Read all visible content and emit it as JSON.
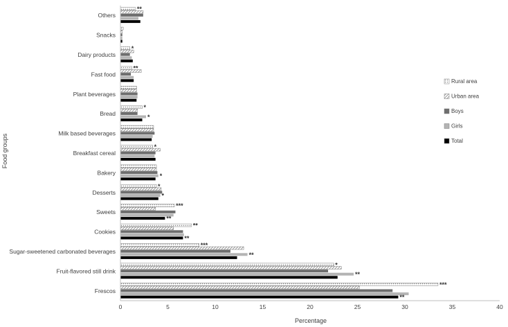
{
  "chart_data": {
    "type": "bar",
    "orientation": "horizontal",
    "xlabel": "Percentage",
    "ylabel": "Food groups",
    "xlim": [
      0,
      40
    ],
    "xticks": [
      0,
      5,
      10,
      15,
      20,
      25,
      30,
      35,
      40
    ],
    "grid": false,
    "legend_position": "right",
    "categories": [
      "Others",
      "Snacks",
      "Dairy products",
      "Fast food",
      "Plant beverages",
      "Bread",
      "Milk based beverages",
      "Breakfast cereal",
      "Bakery",
      "Desserts",
      "Sweets",
      "Cookies",
      "Sugar-sweetened carbonated beverages",
      "Fruit-flavored still drink",
      "Frescos"
    ],
    "series": [
      {
        "name": "Rural area",
        "color": "#e4e4e4",
        "pattern": "dots",
        "values": [
          1.6,
          0.3,
          1.0,
          1.2,
          1.7,
          2.3,
          3.5,
          3.4,
          3.8,
          3.8,
          5.7,
          7.5,
          8.3,
          22.5,
          33.5
        ]
      },
      {
        "name": "Urban area",
        "color": "#d6d6d6",
        "pattern": "diagonal",
        "values": [
          2.4,
          0.2,
          1.4,
          2.2,
          1.7,
          1.8,
          3.5,
          4.2,
          3.8,
          4.3,
          3.7,
          5.6,
          13.0,
          23.3,
          25.2
        ]
      },
      {
        "name": "Boys",
        "color": "#6e6e6e",
        "pattern": "solid",
        "values": [
          2.4,
          0.2,
          1.0,
          1.1,
          1.8,
          1.8,
          3.6,
          3.7,
          3.9,
          4.4,
          5.8,
          6.6,
          11.6,
          21.9,
          28.7
        ]
      },
      {
        "name": "Girls",
        "color": "#b4b4b4",
        "pattern": "solid",
        "values": [
          1.9,
          0.2,
          1.2,
          1.4,
          1.8,
          2.7,
          3.4,
          3.6,
          4.0,
          4.2,
          5.6,
          6.7,
          13.4,
          24.6,
          30.4
        ]
      },
      {
        "name": "Total",
        "color": "#000000",
        "pattern": "solid",
        "values": [
          2.1,
          0.2,
          1.3,
          1.4,
          1.7,
          2.3,
          3.3,
          3.7,
          3.7,
          4.0,
          4.7,
          6.6,
          12.3,
          22.9,
          29.3
        ]
      }
    ],
    "annotations": [
      {
        "category": "Others",
        "series": "Rural area",
        "text": "**"
      },
      {
        "category": "Dairy products",
        "series": "Rural area",
        "text": "*"
      },
      {
        "category": "Fast food",
        "series": "Rural area",
        "text": "**"
      },
      {
        "category": "Bread",
        "series": "Rural area",
        "text": "*"
      },
      {
        "category": "Bread",
        "series": "Girls",
        "text": "*"
      },
      {
        "category": "Breakfast cereal",
        "series": "Rural area",
        "text": "*"
      },
      {
        "category": "Bakery",
        "series": "Girls",
        "text": "*"
      },
      {
        "category": "Desserts",
        "series": "Rural area",
        "text": "*"
      },
      {
        "category": "Desserts",
        "series": "Girls",
        "text": "*"
      },
      {
        "category": "Sweets",
        "series": "Rural area",
        "text": "***"
      },
      {
        "category": "Sweets",
        "series": "Total",
        "text": "**"
      },
      {
        "category": "Cookies",
        "series": "Rural area",
        "text": "**"
      },
      {
        "category": "Cookies",
        "series": "Total",
        "text": "**"
      },
      {
        "category": "Sugar-sweetened carbonated beverages",
        "series": "Rural area",
        "text": "***"
      },
      {
        "category": "Sugar-sweetened carbonated beverages",
        "series": "Girls",
        "text": "**"
      },
      {
        "category": "Fruit-flavored still drink",
        "series": "Rural area",
        "text": "*"
      },
      {
        "category": "Fruit-flavored still drink",
        "series": "Girls",
        "text": "**"
      },
      {
        "category": "Frescos",
        "series": "Rural area",
        "text": "***"
      },
      {
        "category": "Frescos",
        "series": "Total",
        "text": "**"
      }
    ]
  }
}
